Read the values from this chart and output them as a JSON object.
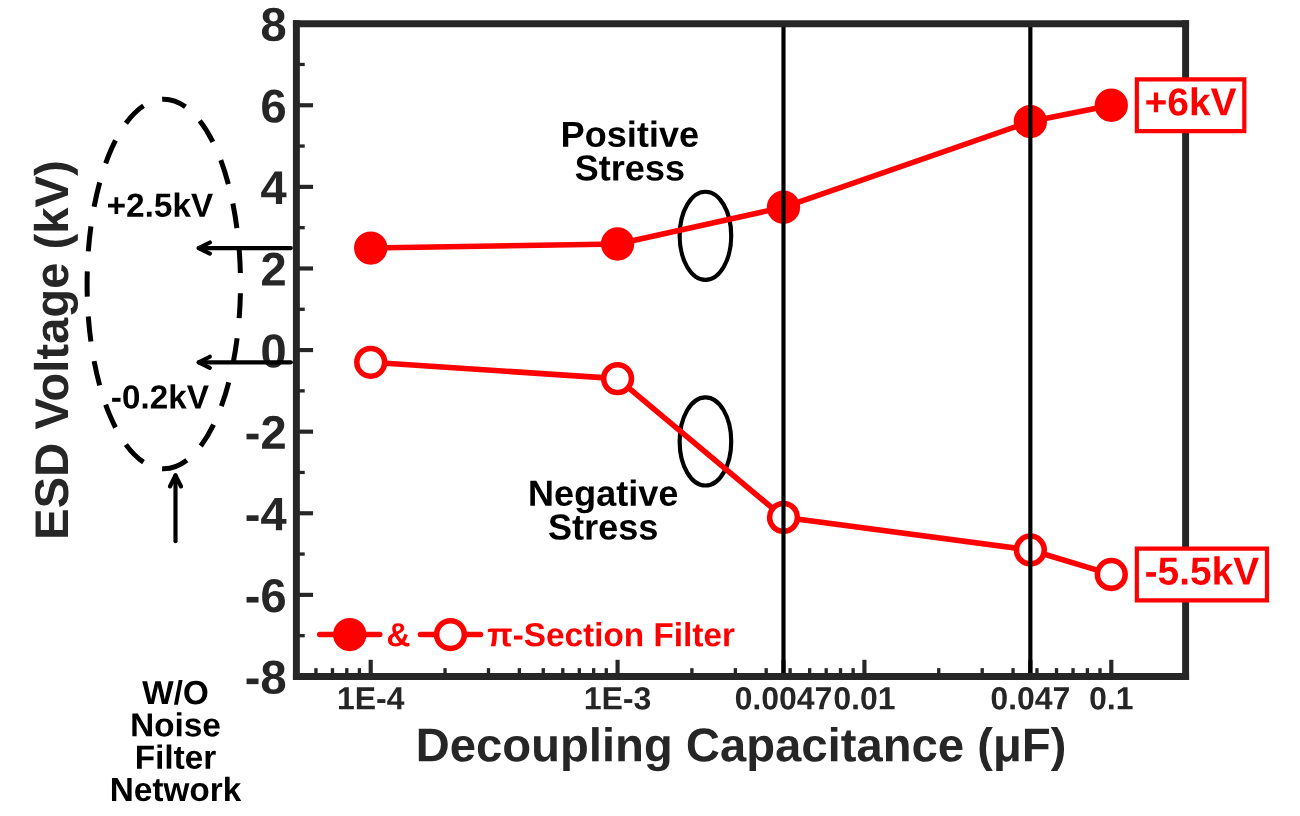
{
  "chart_data": {
    "type": "line",
    "xlabel": "Decoupling Capacitance (μF)",
    "ylabel": "ESD Voltage (kV)",
    "log": "x",
    "x": [
      0.0001,
      0.001,
      0.0047,
      0.047,
      0.1
    ],
    "series": [
      {
        "name": "&",
        "color": "#ff0000",
        "values": [
          2.5,
          2.6,
          3.5,
          5.6,
          6.0
        ],
        "marker": "circle"
      },
      {
        "name": "π-Section Filter",
        "color": "#ff0000",
        "values": [
          -0.3,
          -0.7,
          -4.1,
          -4.9,
          -5.5
        ],
        "marker": "circle"
      }
    ],
    "xlim": [
      5e-05,
      0.2
    ],
    "xticks": [
      {
        "value": 0.0001,
        "label": "1E-4"
      },
      {
        "value": 0.001,
        "label": "1E-3"
      },
      0.0047,
      0.01,
      0.047,
      0.1
    ],
    "ylim": [
      -8,
      8
    ],
    "yticks": [
      -8,
      -6,
      -4,
      -2,
      0,
      2,
      4,
      6,
      8
    ],
    "ref_lines": [
      {
        "axis": "x",
        "value": 0.0047,
        "color": "#000000"
      },
      {
        "axis": "x",
        "value": 0.047,
        "color": "#000000"
      }
    ],
    "annotations": [
      "Positive Stress",
      "Negative Stress",
      {
        "text": "+6kV",
        "x": 0.1,
        "y": 6.0
      },
      {
        "text": "-5.5kV",
        "x": 0.1,
        "y": -5.5
      },
      "+2.5kV",
      "-0.2kV",
      "W/O Noise Filter Network"
    ],
    "grid": false,
    "legend": "bottom left",
    "line_style": "solid"
  }
}
